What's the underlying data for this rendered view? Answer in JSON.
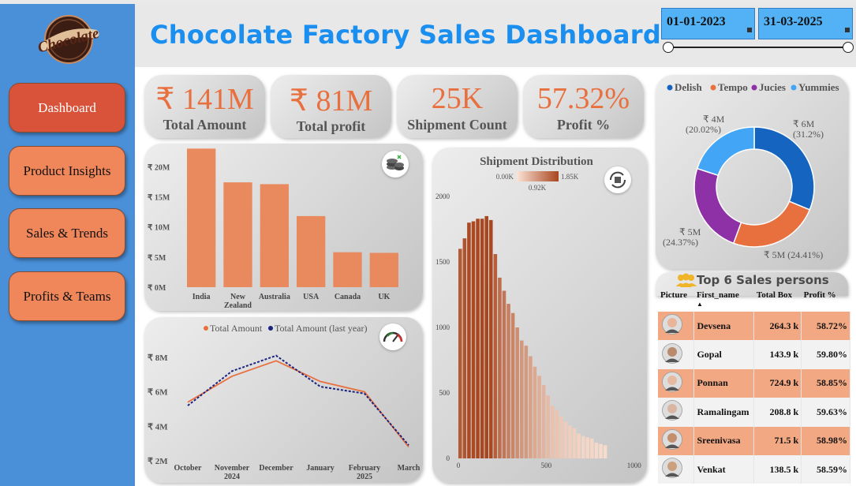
{
  "header": {
    "title": "Chocolate Factory Sales Dashboard",
    "date_start": "01-01-2023",
    "date_end": "31-03-2025"
  },
  "logo": {
    "text": "Chocolate"
  },
  "sidebar": {
    "items": [
      {
        "label": "Dashboard",
        "active": true
      },
      {
        "label": "Product Insights",
        "active": false
      },
      {
        "label": "Sales & Trends",
        "active": false
      },
      {
        "label": "Profits & Teams",
        "active": false
      }
    ]
  },
  "kpis": [
    {
      "value": "₹ 141M",
      "label": "Total Amount"
    },
    {
      "value": "₹ 81M",
      "label": "Total profit"
    },
    {
      "value": "25K",
      "label": "Shipment Count"
    },
    {
      "value": "57.32%",
      "label": "Profit %"
    }
  ],
  "colors": {
    "accent": "#e9895e",
    "title": "#1a8fef",
    "sidebar": "#4a90d9",
    "kpi_value": "#e8703f",
    "line_current": "#e8703f",
    "line_last_year": "#1a237e"
  },
  "chart_data": [
    {
      "type": "bar",
      "id": "amount_by_country",
      "categories": [
        "India",
        "New Zealand",
        "Australia",
        "USA",
        "Canada",
        "UK"
      ],
      "category_lines": [
        [
          "India"
        ],
        [
          "New",
          "Zealand"
        ],
        [
          "Australia"
        ],
        [
          "USA"
        ],
        [
          "Canada"
        ],
        [
          "UK"
        ]
      ],
      "values": [
        23,
        17.4,
        17.1,
        11.8,
        5.8,
        5.7
      ],
      "unit": "₹ M",
      "ylim": [
        0,
        22
      ],
      "yticks": [
        "₹ 0M",
        "₹ 5M",
        "₹ 10M",
        "₹ 15M",
        "₹ 20M"
      ],
      "ytick_values": [
        0,
        5,
        10,
        15,
        20
      ],
      "color": "#e9895e",
      "icon": "money-stack-icon"
    },
    {
      "type": "line",
      "id": "amount_trend",
      "legend": [
        "Total Amount",
        "Total Amount (last year)"
      ],
      "categories": [
        "October",
        "November",
        "December",
        "January",
        "February",
        "March"
      ],
      "category_years": [
        "",
        "2024",
        "",
        "",
        "2025",
        ""
      ],
      "series": [
        {
          "name": "Total Amount",
          "values": [
            5.4,
            6.9,
            7.8,
            6.6,
            6.0,
            2.8
          ],
          "color": "#e8703f",
          "style": "solid"
        },
        {
          "name": "Total Amount (last year)",
          "values": [
            5.2,
            7.2,
            8.1,
            6.3,
            5.9,
            2.9
          ],
          "color": "#1a237e",
          "style": "dotted"
        }
      ],
      "ylim": [
        2,
        8.5
      ],
      "yticks": [
        "₹ 2M",
        "₹ 4M",
        "₹ 6M",
        "₹ 8M"
      ],
      "ytick_values": [
        2,
        4,
        6,
        8
      ],
      "icon": "gauge-icon"
    },
    {
      "type": "bar",
      "id": "shipment_distribution",
      "title": "Shipment Distribution",
      "legend_gradient": [
        "0.00K",
        "0.92K",
        "1.85K"
      ],
      "bin_width": 25,
      "x_start": 0,
      "values": [
        1600,
        1680,
        1800,
        1810,
        1830,
        1830,
        1850,
        1820,
        1560,
        1380,
        1280,
        1180,
        1110,
        1000,
        900,
        860,
        780,
        700,
        630,
        560,
        480,
        400,
        370,
        320,
        280,
        250,
        230,
        190,
        170,
        160,
        150,
        120,
        110,
        100
      ],
      "xlim": [
        0,
        1010
      ],
      "ylim": [
        0,
        2000
      ],
      "xticks": [
        0,
        500,
        1000
      ],
      "yticks": [
        0,
        500,
        1000,
        1500,
        2000
      ],
      "icon": "box-cycle-icon"
    },
    {
      "type": "pie",
      "id": "product_share",
      "legend": [
        "Delish",
        "Tempo",
        "Jucies",
        "Yummies"
      ],
      "slices": [
        {
          "name": "Delish",
          "percent": 31.2,
          "label": "₹ 6M",
          "label_pct": "(31.2%)",
          "color": "#1565c0"
        },
        {
          "name": "Tempo",
          "percent": 24.41,
          "label": "₹ 5M",
          "label_pct": "(24.41%)",
          "color": "#e8703f"
        },
        {
          "name": "Jucies",
          "percent": 24.37,
          "label": "₹ 5M",
          "label_pct": "(24.37%)",
          "color": "#8e30a6"
        },
        {
          "name": "Yummies",
          "percent": 20.02,
          "label": "₹ 4M",
          "label_pct": "(20.02%)",
          "color": "#42a5f5"
        }
      ]
    }
  ],
  "sales_table": {
    "title": "Top 6 Sales persons",
    "columns": [
      "Picture",
      "First_name",
      "Total Box",
      "Profit %"
    ],
    "rows": [
      {
        "name": "Devsena",
        "boxes": "264.3 k",
        "profit": "58.72%",
        "skin": "#e8b49a",
        "hair": "#6b3b22"
      },
      {
        "name": "Gopal",
        "boxes": "143.9 k",
        "profit": "59.80%",
        "skin": "#b98a6b",
        "hair": "#2a1c15"
      },
      {
        "name": "Ponnan",
        "boxes": "724.9 k",
        "profit": "58.85%",
        "skin": "#e6b9a3",
        "hair": "#3b2a22"
      },
      {
        "name": "Ramalingam",
        "boxes": "208.8 k",
        "profit": "59.63%",
        "skin": "#d8b6a2",
        "hair": "#5a5450"
      },
      {
        "name": "Sreenivasa",
        "boxes": "71.5 k",
        "profit": "58.98%",
        "skin": "#c48f6d",
        "hair": "#7a5a40"
      },
      {
        "name": "Venkat",
        "boxes": "138.5 k",
        "profit": "58.59%",
        "skin": "#caa07f",
        "hair": "#4a3324"
      }
    ]
  }
}
